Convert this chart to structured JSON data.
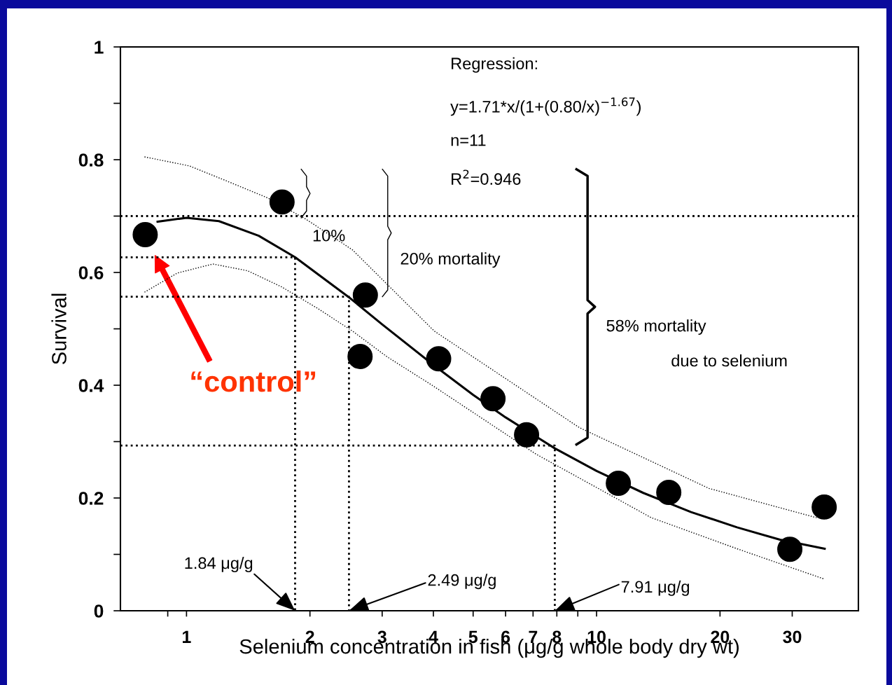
{
  "chart_data": {
    "type": "scatter",
    "xlabel": "Selenium concentration in fish (μg/g whole body dry wt)",
    "ylabel": "Survival",
    "log": "x",
    "xlim": [
      0.69,
      43.5
    ],
    "xticks": [
      {
        "value": 0.9,
        "label": null
      },
      1,
      2,
      3,
      4,
      5,
      6,
      7,
      8,
      {
        "value": 9,
        "label": null
      },
      10,
      20,
      30
    ],
    "ylim": [
      0,
      1
    ],
    "yticks": [
      0,
      {
        "value": 0.1,
        "label": null
      },
      0.2,
      {
        "value": 0.3,
        "label": null
      },
      0.4,
      {
        "value": 0.5,
        "label": null
      },
      0.6,
      {
        "value": 0.7,
        "label": null
      },
      0.8,
      {
        "value": 0.9,
        "label": null
      },
      1
    ],
    "series": [
      {
        "type": "line",
        "color": "#000000",
        "line_style": "dotted",
        "x": [
          0.69,
          1.84,
          1.84
        ],
        "values": [
          0.627,
          0.627,
          0
        ]
      },
      {
        "type": "line",
        "color": "#000000",
        "line_style": "dotted",
        "x": [
          0.69,
          2.49,
          2.49
        ],
        "values": [
          0.557,
          0.557,
          0
        ]
      },
      {
        "type": "line",
        "color": "#000000",
        "line_style": "dotted",
        "x": [
          0.69,
          7.91,
          7.91
        ],
        "values": [
          0.293,
          0.293,
          0
        ]
      },
      {
        "type": "line",
        "color": "#000000",
        "line_style": "dotted",
        "x": [
          0.79,
          1.016,
          1.236,
          1.58,
          1.96,
          2.54,
          4.02,
          9.07,
          18.8,
          34.4
        ],
        "values": [
          0.805,
          0.789,
          0.764,
          0.732,
          0.694,
          0.64,
          0.496,
          0.325,
          0.217,
          0.165
        ]
      },
      {
        "type": "line",
        "color": "#000000",
        "line_style": "dotted",
        "x": [
          0.79,
          0.95,
          1.16,
          1.41,
          1.71,
          2.08,
          2.54,
          3.09,
          3.97,
          7.11,
          13.6,
          22.2,
          36
        ],
        "values": [
          0.565,
          0.599,
          0.615,
          0.603,
          0.574,
          0.537,
          0.496,
          0.45,
          0.4,
          0.278,
          0.165,
          0.109,
          0.056
        ]
      },
      {
        "type": "line",
        "color": "#000000",
        "line_style": "solid",
        "x": [
          0.85,
          1,
          1.2,
          1.5,
          1.84,
          2.49,
          3,
          4,
          5,
          6,
          7.91,
          10,
          13,
          17,
          22,
          28,
          36
        ],
        "values": [
          0.69,
          0.697,
          0.691,
          0.665,
          0.627,
          0.556,
          0.508,
          0.436,
          0.383,
          0.343,
          0.288,
          0.248,
          0.209,
          0.175,
          0.148,
          0.126,
          0.11
        ]
      },
      {
        "color": "#000000",
        "marker": "circle",
        "x": [
          0.793,
          1.71,
          2.73,
          2.65,
          4.12,
          5.59,
          6.75,
          11.3,
          15.0,
          29.6,
          35.9
        ],
        "values": [
          0.667,
          0.725,
          0.56,
          0.451,
          0.447,
          0.376,
          0.312,
          0.226,
          0.21,
          0.109,
          0.184
        ]
      }
    ],
    "ref_lines": [
      {
        "axis": "y",
        "value": 0.7,
        "color": "#000000",
        "line_style": "dotted"
      }
    ],
    "annotations": [
      "Regression:",
      "y=1.71*x/(1+(0.80/x)$^{−1.67}$)",
      "n=11",
      "R$^{2}$=0.946",
      "10%",
      "20% mortality",
      "58% mortality",
      "due to selenium",
      "“control”",
      {
        "text": "1.84 μg/g",
        "x": 1.84,
        "y": 0
      },
      {
        "text": "2.49 μg/g",
        "x": 2.49,
        "y": 0
      },
      {
        "text": "7.91 μg/g",
        "x": 7.91,
        "y": 0
      }
    ]
  }
}
